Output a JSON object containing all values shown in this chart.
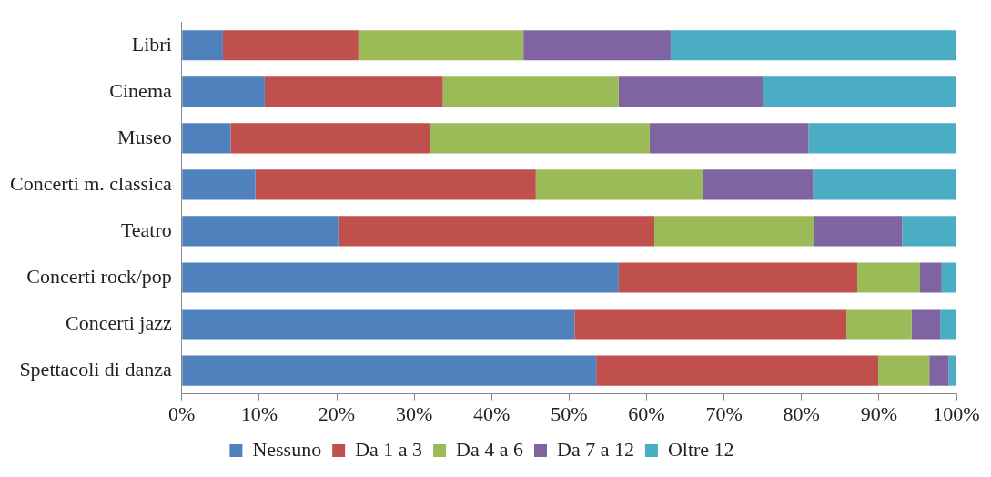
{
  "chart_data": {
    "type": "bar",
    "orientation": "horizontal",
    "stacked": true,
    "categories": [
      "Libri",
      "Cinema",
      "Museo",
      "Concerti m. classica",
      "Teatro",
      "Concerti rock/pop",
      "Concerti jazz",
      "Spettacoli di danza"
    ],
    "series": [
      {
        "name": "Nessuno",
        "color": "#4f81bd",
        "values": [
          5.3,
          10.7,
          6.3,
          9.5,
          20.2,
          56.4,
          50.7,
          53.5
        ]
      },
      {
        "name": "Da 1 a 3",
        "color": "#c0504d",
        "values": [
          17.5,
          23.0,
          25.8,
          36.2,
          40.8,
          30.8,
          35.1,
          36.4
        ]
      },
      {
        "name": "Da 4 a 6",
        "color": "#9bbb59",
        "values": [
          21.3,
          22.7,
          28.3,
          21.6,
          20.6,
          8.1,
          8.4,
          6.6
        ]
      },
      {
        "name": "Da 7 a 12",
        "color": "#8064a2",
        "values": [
          19.0,
          18.7,
          20.5,
          14.2,
          11.4,
          2.8,
          3.7,
          2.5
        ]
      },
      {
        "name": "Oltre 12",
        "color": "#4bacc6",
        "values": [
          36.9,
          24.9,
          19.1,
          18.5,
          7.0,
          1.9,
          2.1,
          1.0
        ]
      }
    ],
    "xlim": [
      0,
      100
    ],
    "xticks": [
      {
        "value": 0,
        "label": "0%"
      },
      {
        "value": 10,
        "label": "10%"
      },
      {
        "value": 20,
        "label": "20%"
      },
      {
        "value": 30,
        "label": "30%"
      },
      {
        "value": 40,
        "label": "40%"
      },
      {
        "value": 50,
        "label": "50%"
      },
      {
        "value": 60,
        "label": "60%"
      },
      {
        "value": 70,
        "label": "70%"
      },
      {
        "value": 80,
        "label": "80%"
      },
      {
        "value": 90,
        "label": "90%"
      },
      {
        "value": 100,
        "label": "100%"
      }
    ],
    "grid": false,
    "legend": "bottom"
  }
}
